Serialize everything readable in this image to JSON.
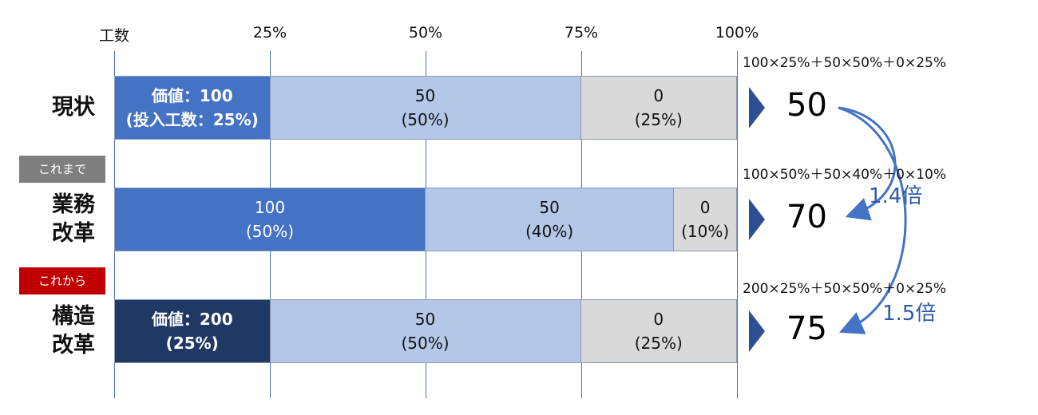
{
  "chart_data": {
    "type": "bar",
    "stacked": true,
    "axis": {
      "ticks": [
        "工数",
        "25%",
        "50%",
        "75%",
        "100%"
      ],
      "range": [
        0,
        100
      ]
    },
    "rows": [
      {
        "label": "現状",
        "tag": "",
        "segments": [
          {
            "value_label": "価値：100",
            "share_label": "(投入工数：25%)",
            "share": 25,
            "color": "#4472c4",
            "text_color": "#ffffff",
            "bold": true
          },
          {
            "value_label": "50",
            "share_label": "(50%)",
            "share": 50,
            "color": "#b4c7e7",
            "text_color": "#111111",
            "bold": false
          },
          {
            "value_label": "0",
            "share_label": "(25%)",
            "share": 25,
            "color": "#d9d9d9",
            "text_color": "#111111",
            "bold": false
          }
        ],
        "formula": "100×25%＋50×50%＋0×25%",
        "result": "50"
      },
      {
        "label": "業務\n改革",
        "tag": "これまで",
        "tag_color": "#7f7f7f",
        "segments": [
          {
            "value_label": "100",
            "share_label": "(50%)",
            "share": 50,
            "color": "#4472c4",
            "text_color": "#ffffff",
            "bold": false
          },
          {
            "value_label": "50",
            "share_label": "(40%)",
            "share": 40,
            "color": "#b4c7e7",
            "text_color": "#111111",
            "bold": false
          },
          {
            "value_label": "0",
            "share_label": "(10%)",
            "share": 10,
            "color": "#d9d9d9",
            "text_color": "#111111",
            "bold": false
          }
        ],
        "formula": "100×50%＋50×40%＋0×10%",
        "result": "70"
      },
      {
        "label": "構造\n改革",
        "tag": "これから",
        "tag_color": "#c00000",
        "segments": [
          {
            "value_label": "価値：200",
            "share_label": "(25%)",
            "share": 25,
            "color": "#203864",
            "text_color": "#ffffff",
            "bold": true
          },
          {
            "value_label": "50",
            "share_label": "(50%)",
            "share": 50,
            "color": "#b4c7e7",
            "text_color": "#111111",
            "bold": false
          },
          {
            "value_label": "0",
            "share_label": "(25%)",
            "share": 25,
            "color": "#d9d9d9",
            "text_color": "#111111",
            "bold": false
          }
        ],
        "formula": "200×25%＋50×50%＋0×25%",
        "result": "75"
      }
    ],
    "ratios": [
      "1.4倍",
      "1.5倍"
    ],
    "grid": true
  }
}
